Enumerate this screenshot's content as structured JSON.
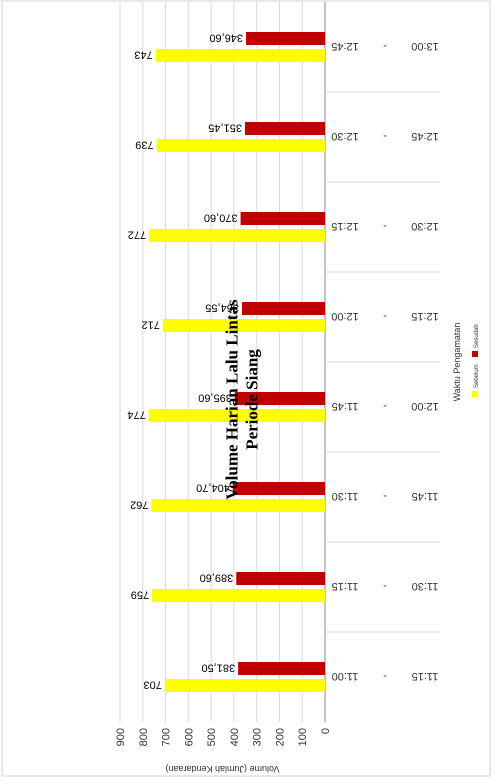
{
  "chart_data": {
    "type": "bar",
    "title": "Volume Harian Lalu Lintas Periode Siang",
    "ylabel": "Volume (Jumlah Kendaraan)",
    "xlabel": "Waktu Pengamatan",
    "ylim": [
      0,
      900
    ],
    "yticks": [
      "0",
      "100",
      "200",
      "300",
      "400",
      "500",
      "600",
      "700",
      "800",
      "900"
    ],
    "categories": [
      {
        "start": "11:00",
        "dash": "-",
        "end": "11:15"
      },
      {
        "start": "11:15",
        "dash": "-",
        "end": "11:30"
      },
      {
        "start": "11:30",
        "dash": "-",
        "end": "11:45"
      },
      {
        "start": "11:45",
        "dash": "-",
        "end": "12:00"
      },
      {
        "start": "12:00",
        "dash": "-",
        "end": "12:15"
      },
      {
        "start": "12:15",
        "dash": "-",
        "end": "12:30"
      },
      {
        "start": "12:30",
        "dash": "-",
        "end": "12:45"
      },
      {
        "start": "12:45",
        "dash": "-",
        "end": "13:00"
      }
    ],
    "series": [
      {
        "name": "Sebelum",
        "color": "#ffff00",
        "values": [
          703,
          759,
          762,
          774,
          712,
          772,
          739,
          743
        ],
        "labels": [
          "703",
          "759",
          "762",
          "774",
          "712",
          "772",
          "739",
          "743"
        ]
      },
      {
        "name": "Sesudah",
        "color": "#c00000",
        "values": [
          381.5,
          389.6,
          404.7,
          395.6,
          364.55,
          370.6,
          351.45,
          346.6
        ],
        "labels": [
          "381,50",
          "389,60",
          "404,70",
          "395,60",
          "364,55",
          "370,60",
          "351,45",
          "346,60"
        ]
      }
    ],
    "grid": true,
    "legend": "bottom",
    "orientation": "rotated"
  }
}
